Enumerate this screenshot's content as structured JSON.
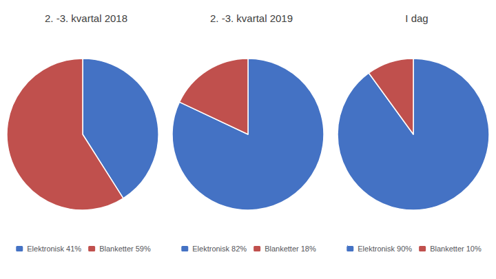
{
  "chart_data": [
    {
      "type": "pie",
      "title": "2. -3. kvartal 2018",
      "categories": [
        "Elektronisk 41%",
        "Blanketter 59%"
      ],
      "values": [
        41,
        59
      ],
      "colors": [
        "#4472C4",
        "#C0504D"
      ],
      "legend": "bottom"
    },
    {
      "type": "pie",
      "title": "2. -3. kvartal 2019",
      "categories": [
        "Elektronisk 82%",
        "Blanketter 18%"
      ],
      "values": [
        82,
        18
      ],
      "colors": [
        "#4472C4",
        "#C0504D"
      ],
      "legend": "bottom"
    },
    {
      "type": "pie",
      "title": "I dag",
      "categories": [
        "Elektronisk 90%",
        "Blanketter 10%"
      ],
      "values": [
        90,
        10
      ],
      "colors": [
        "#4472C4",
        "#C0504D"
      ],
      "legend": "bottom"
    }
  ]
}
